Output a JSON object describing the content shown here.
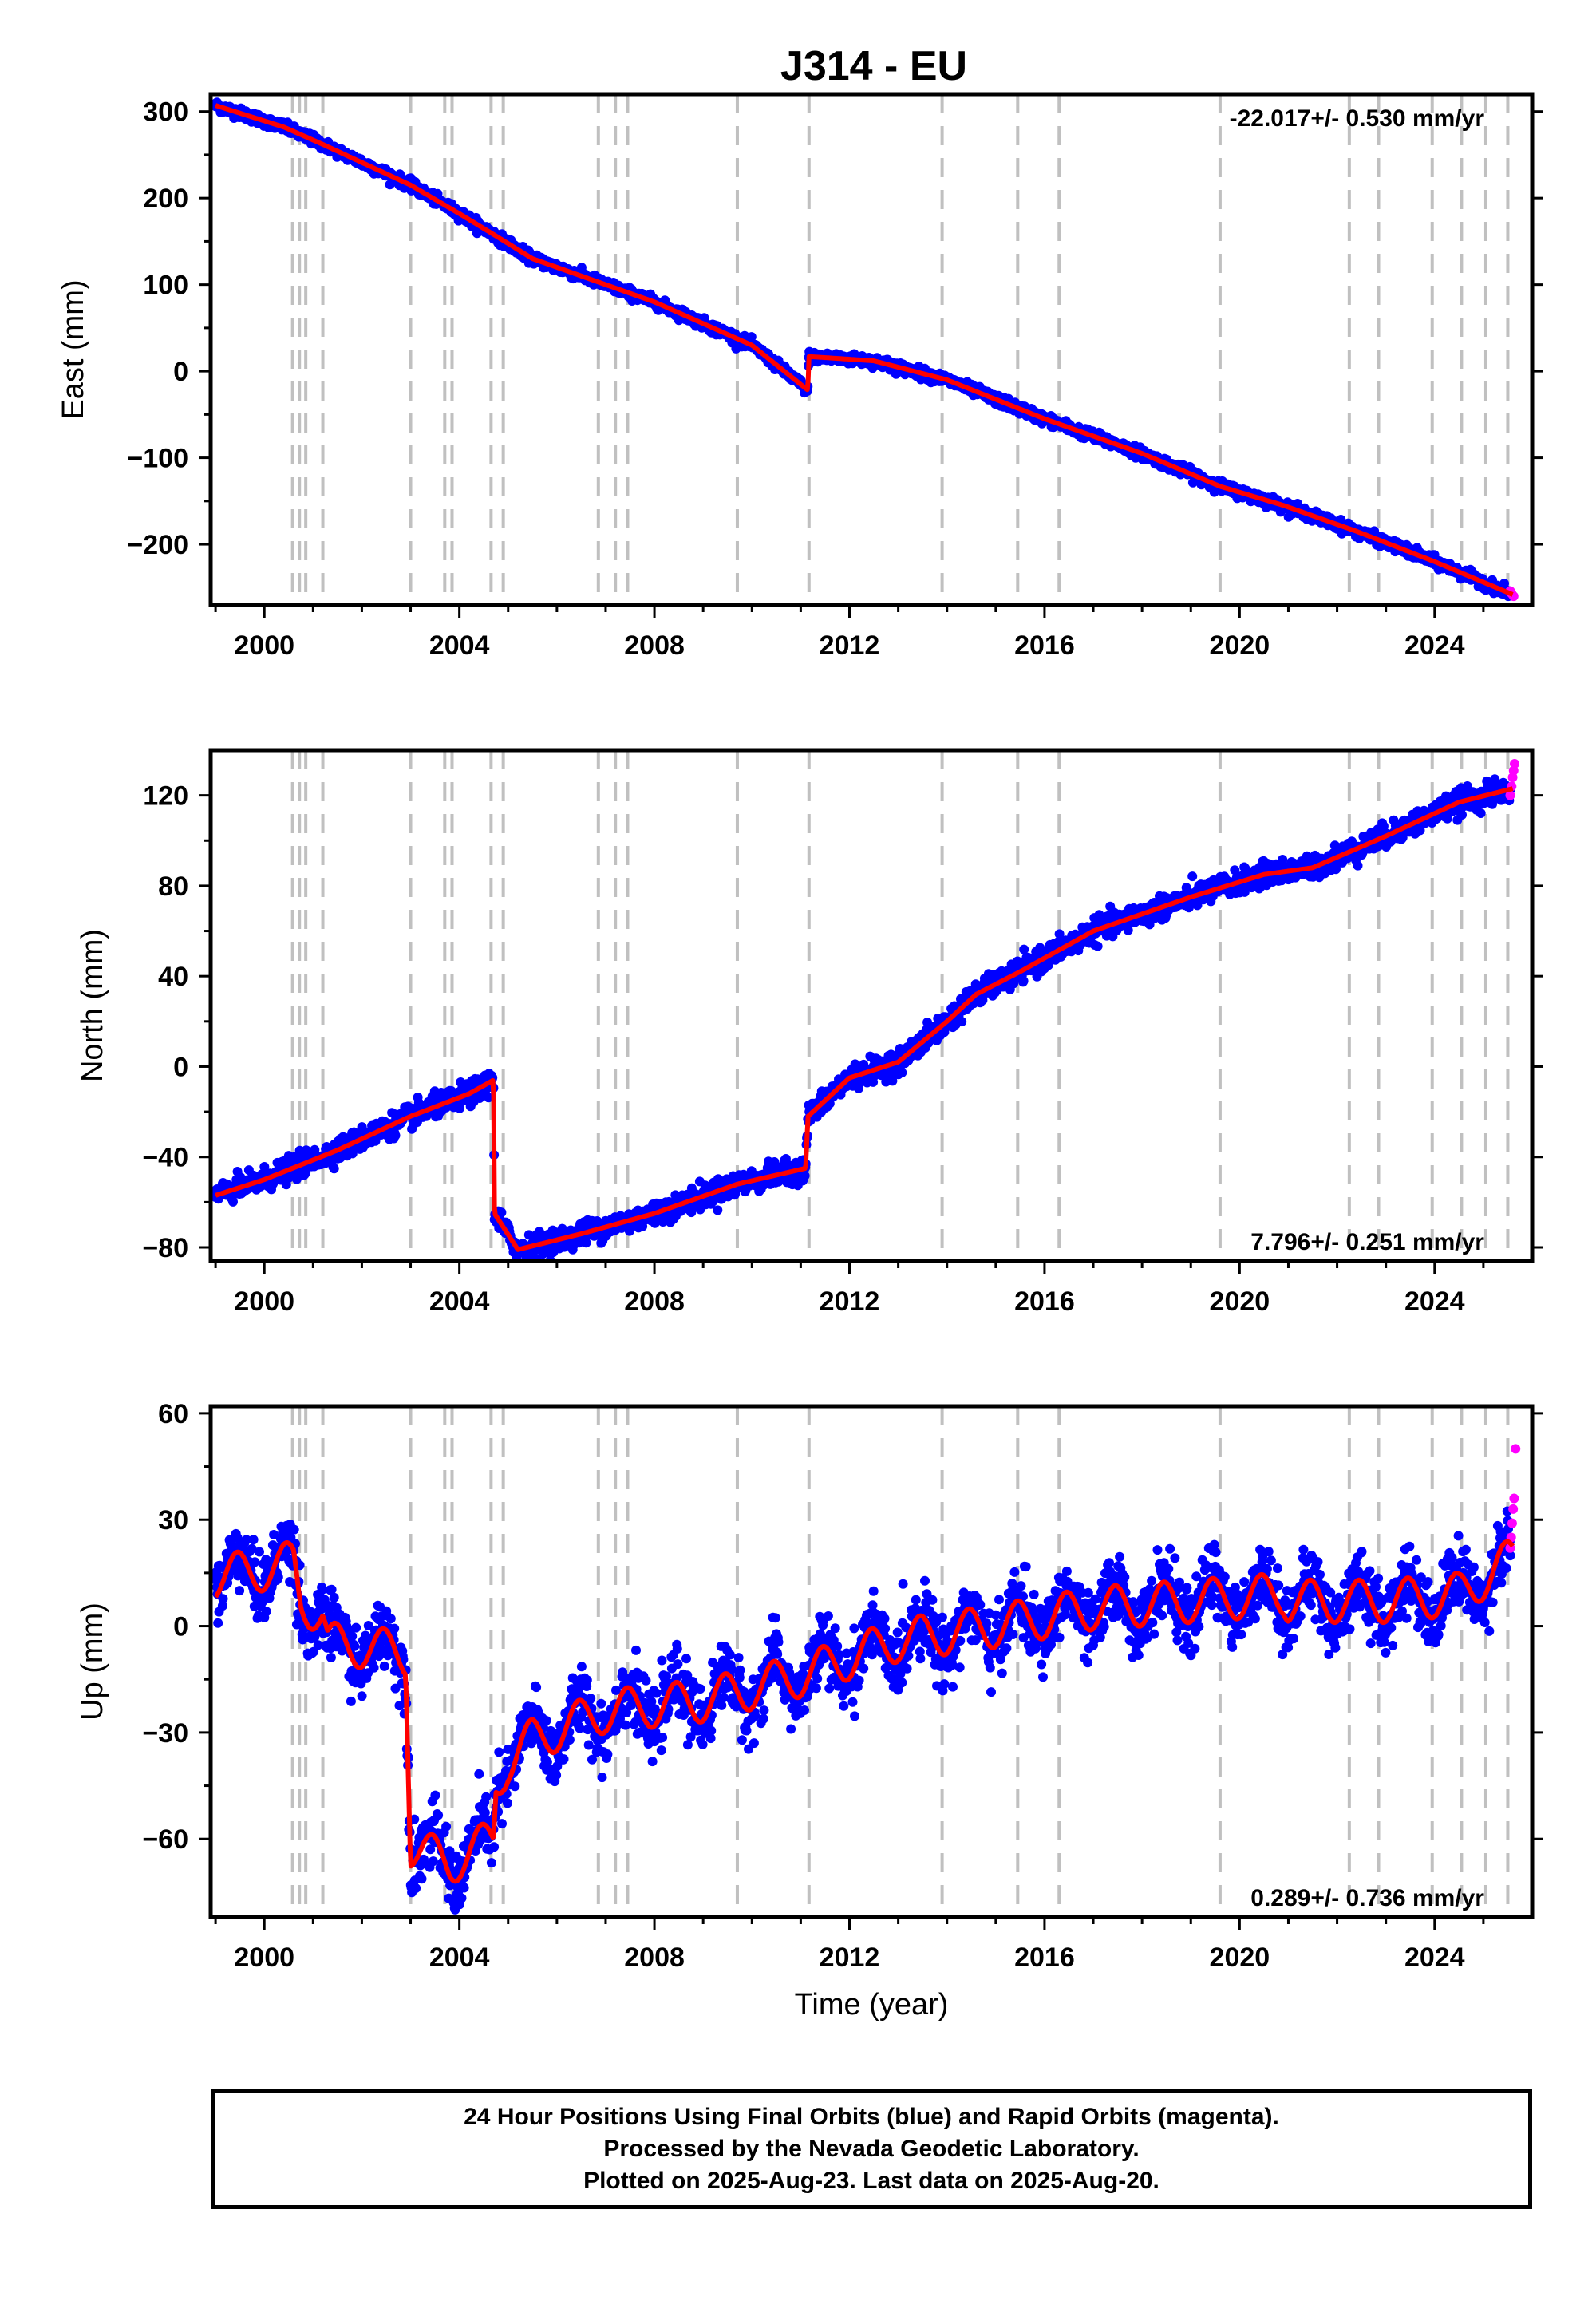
{
  "chart_data": [
    {
      "type": "scatter",
      "title": "J314 - EU",
      "ylabel": "East (mm)",
      "xlim": [
        1998.9,
        2026.0
      ],
      "ylim": [
        -270,
        320
      ],
      "yticks": [
        300,
        200,
        100,
        0,
        -100,
        -200
      ],
      "xticks": [
        2000,
        2004,
        2008,
        2012,
        2016,
        2020,
        2024
      ],
      "rate": "-22.017+/- 0.530 mm/yr",
      "rate_position": "top-right",
      "colors": {
        "final": "#0000ff",
        "rapid": "#ff00ff",
        "model": "#ff0000",
        "events": "#c0c0c0"
      },
      "trend": [
        [
          1999.0,
          307
        ],
        [
          2000.4,
          282
        ],
        [
          2001.2,
          262
        ],
        [
          2003.0,
          215
        ],
        [
          2004.0,
          182
        ],
        [
          2004.7,
          158
        ],
        [
          2005.5,
          130
        ],
        [
          2008.0,
          80
        ],
        [
          2010.0,
          30
        ],
        [
          2011.15,
          -22
        ],
        [
          2011.16,
          17
        ],
        [
          2012.5,
          12
        ],
        [
          2014.0,
          -10
        ],
        [
          2016.0,
          -55
        ],
        [
          2018.0,
          -95
        ],
        [
          2019.6,
          -133
        ],
        [
          2020.9,
          -155
        ],
        [
          2022.4,
          -185
        ],
        [
          2024.0,
          -220
        ],
        [
          2025.6,
          -258
        ]
      ],
      "noise": 3,
      "rapid": [
        [
          2025.55,
          -254
        ],
        [
          2025.58,
          -257
        ],
        [
          2025.62,
          -260
        ]
      ]
    },
    {
      "type": "scatter",
      "ylabel": "North (mm)",
      "xlim": [
        1998.9,
        2026.0
      ],
      "ylim": [
        -86,
        140
      ],
      "yticks": [
        120,
        80,
        40,
        0,
        -40,
        -80
      ],
      "xticks": [
        2000,
        2004,
        2008,
        2012,
        2016,
        2020,
        2024
      ],
      "rate": "7.796+/- 0.251 mm/yr",
      "rate_position": "bottom-right",
      "colors": {
        "final": "#0000ff",
        "rapid": "#ff00ff",
        "model": "#ff0000",
        "events": "#c0c0c0"
      },
      "trend": [
        [
          1999.0,
          -57
        ],
        [
          2000.0,
          -50
        ],
        [
          2001.5,
          -37
        ],
        [
          2003.0,
          -22
        ],
        [
          2004.2,
          -12
        ],
        [
          2004.7,
          -6
        ],
        [
          2004.72,
          -65
        ],
        [
          2005.2,
          -81
        ],
        [
          2006.5,
          -74
        ],
        [
          2008.0,
          -65
        ],
        [
          2009.7,
          -52
        ],
        [
          2011.1,
          -45
        ],
        [
          2011.15,
          -22
        ],
        [
          2012.0,
          -5
        ],
        [
          2013.0,
          2
        ],
        [
          2014.0,
          20
        ],
        [
          2014.6,
          32
        ],
        [
          2015.5,
          42
        ],
        [
          2017.0,
          60
        ],
        [
          2019.0,
          75
        ],
        [
          2020.5,
          85
        ],
        [
          2021.5,
          88
        ],
        [
          2023.0,
          102
        ],
        [
          2024.5,
          117
        ],
        [
          2025.6,
          123
        ]
      ],
      "noise": 2.5,
      "rapid": [
        [
          2025.55,
          120
        ],
        [
          2025.58,
          124
        ],
        [
          2025.6,
          128
        ],
        [
          2025.62,
          131
        ],
        [
          2025.64,
          134
        ]
      ]
    },
    {
      "type": "scatter",
      "ylabel": "Up (mm)",
      "xlabel": "Time (year)",
      "xlim": [
        1998.9,
        2026.0
      ],
      "ylim": [
        -82,
        62
      ],
      "yticks": [
        60,
        30,
        0,
        -30,
        -60
      ],
      "xticks": [
        2000,
        2004,
        2008,
        2012,
        2016,
        2020,
        2024
      ],
      "rate": "0.289+/- 0.736 mm/yr",
      "rate_position": "bottom-right",
      "colors": {
        "final": "#0000ff",
        "rapid": "#ff00ff",
        "model": "#ff0000",
        "events": "#c0c0c0"
      },
      "trend": [
        [
          1999.0,
          14
        ],
        [
          2000.0,
          16
        ],
        [
          2000.6,
          18
        ],
        [
          2000.75,
          7
        ],
        [
          2001.2,
          3
        ],
        [
          2001.3,
          -5
        ],
        [
          2002.2,
          -6
        ],
        [
          2002.9,
          -8
        ],
        [
          2003.0,
          -62
        ],
        [
          2003.8,
          -67
        ],
        [
          2004.7,
          -60
        ],
        [
          2004.75,
          -45
        ],
        [
          2005.0,
          -38
        ],
        [
          2005.5,
          -32
        ],
        [
          2007.0,
          -24
        ],
        [
          2009.0,
          -21
        ],
        [
          2011.0,
          -14
        ],
        [
          2013.0,
          -4
        ],
        [
          2015.0,
          0
        ],
        [
          2017.0,
          5
        ],
        [
          2019.0,
          7
        ],
        [
          2020.9,
          9
        ],
        [
          2021.0,
          7
        ],
        [
          2022.0,
          7
        ],
        [
          2023.0,
          7
        ],
        [
          2024.5,
          9
        ],
        [
          2025.6,
          19
        ]
      ],
      "season": 6,
      "noise": 4.5,
      "rapid": [
        [
          2025.55,
          22
        ],
        [
          2025.57,
          25
        ],
        [
          2025.59,
          29
        ],
        [
          2025.61,
          33
        ],
        [
          2025.63,
          36
        ],
        [
          2025.66,
          50
        ]
      ]
    }
  ],
  "events": [
    2000.58,
    2000.72,
    2000.85,
    2001.2,
    2003.0,
    2003.7,
    2003.85,
    2004.65,
    2004.9,
    2006.85,
    2007.2,
    2007.45,
    2009.7,
    2011.17,
    2013.9,
    2015.45,
    2016.3,
    2019.6,
    2022.25,
    2022.85,
    2023.95,
    2024.55,
    2025.05,
    2025.5
  ],
  "footer": {
    "line1": "24 Hour Positions Using Final Orbits (blue) and Rapid Orbits (magenta).",
    "line2": "Processed by the Nevada Geodetic Laboratory.",
    "line3": "Plotted on 2025-Aug-23. Last data on 2025-Aug-20."
  }
}
